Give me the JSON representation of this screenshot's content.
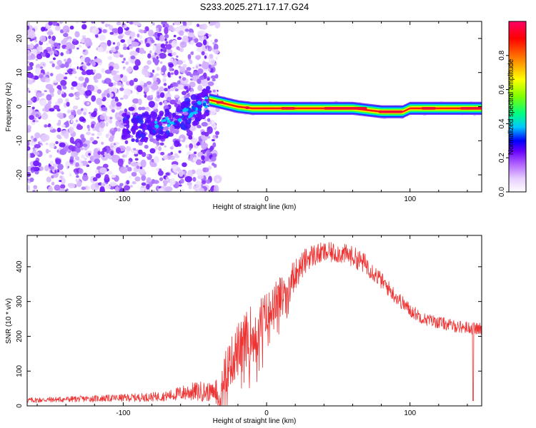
{
  "page_title": "S233.2025.271.17.17.G24",
  "chart_data": [
    {
      "type": "heatmap",
      "title": "S233.2025.271.17.17.G24",
      "xlabel": "Height of straight line (km)",
      "ylabel": "Frequency (Hz)",
      "xlim": [
        -167,
        150
      ],
      "ylim": [
        -25,
        25
      ],
      "xticks": [
        -100,
        0,
        100
      ],
      "yticks": [
        -20,
        -10,
        0,
        10,
        20
      ],
      "colorbar": {
        "label": "Normalized spectral amplitude",
        "range": [
          0,
          1
        ],
        "ticks": [
          0.0,
          0.2,
          0.4,
          0.6,
          0.8
        ],
        "colors": [
          "#ffffff",
          "#e6ccff",
          "#b366ff",
          "#6600ff",
          "#0000ff",
          "#00c8ff",
          "#00ff80",
          "#80ff00",
          "#ffff00",
          "#ff8000",
          "#ff0000",
          "#ff0066"
        ]
      },
      "signal_trace": {
        "description_points_x": [
          -80,
          -70,
          -60,
          -50,
          -40,
          -30,
          -20,
          -10,
          0,
          20,
          40,
          60,
          80,
          95,
          100,
          120,
          150
        ],
        "description_points_y": [
          -6,
          -5,
          -3,
          -1,
          2,
          1,
          0,
          -0.5,
          -0.5,
          -0.5,
          -0.5,
          -0.5,
          -1.5,
          -1.5,
          -0.5,
          -0.5,
          -0.5
        ]
      },
      "noise_region_x": [
        -167,
        -40
      ]
    },
    {
      "type": "line",
      "xlabel": "Height of straight line (km)",
      "ylabel": "SNR (10 * v/v)",
      "xlim": [
        -167,
        150
      ],
      "ylim": [
        0,
        490
      ],
      "xticks": [
        -100,
        0,
        100
      ],
      "yticks": [
        0,
        100,
        200,
        300,
        400
      ],
      "series_color": "#ee3333",
      "series": [
        {
          "name": "SNR",
          "x": [
            -167,
            -150,
            -130,
            -110,
            -90,
            -70,
            -55,
            -45,
            -38,
            -30,
            -20,
            -10,
            0,
            10,
            20,
            30,
            40,
            50,
            60,
            70,
            80,
            90,
            100,
            110,
            120,
            130,
            140,
            150
          ],
          "y": [
            16,
            18,
            20,
            22,
            24,
            28,
            40,
            42,
            38,
            90,
            160,
            215,
            260,
            320,
            380,
            430,
            440,
            440,
            430,
            405,
            360,
            315,
            275,
            250,
            240,
            230,
            225,
            220
          ],
          "noise_amplitude": [
            8,
            8,
            9,
            10,
            12,
            14,
            25,
            30,
            25,
            60,
            80,
            80,
            70,
            55,
            45,
            35,
            30,
            30,
            30,
            30,
            25,
            22,
            20,
            18,
            18,
            18,
            18,
            18
          ]
        }
      ]
    }
  ]
}
